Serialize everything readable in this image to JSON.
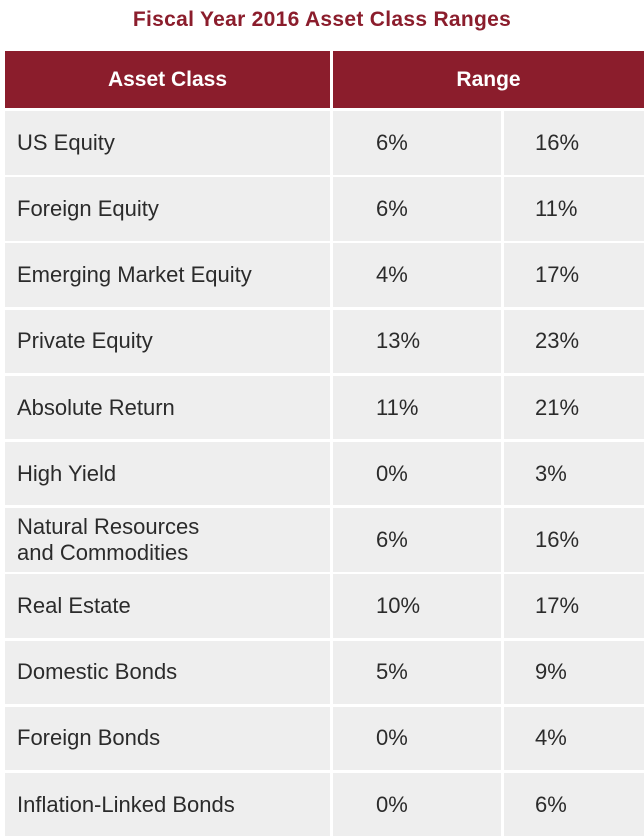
{
  "title": "Fiscal Year 2016 Asset Class Ranges",
  "headers": {
    "asset_class": "Asset Class",
    "range": "Range"
  },
  "rows": [
    {
      "asset": "US Equity",
      "min": "6%",
      "max": "16%"
    },
    {
      "asset": "Foreign Equity",
      "min": "6%",
      "max": "11%"
    },
    {
      "asset": "Emerging Market Equity",
      "min": "4%",
      "max": "17%"
    },
    {
      "asset": "Private Equity",
      "min": "13%",
      "max": "23%"
    },
    {
      "asset": "Absolute Return",
      "min": "11%",
      "max": "21%"
    },
    {
      "asset": "High Yield",
      "min": "0%",
      "max": "3%"
    },
    {
      "asset": "Natural Resources\nand Commodities",
      "min": "6%",
      "max": "16%"
    },
    {
      "asset": "Real Estate",
      "min": "10%",
      "max": "17%"
    },
    {
      "asset": "Domestic Bonds",
      "min": "5%",
      "max": "9%"
    },
    {
      "asset": "Foreign Bonds",
      "min": "0%",
      "max": "4%"
    },
    {
      "asset": "Inflation-Linked Bonds",
      "min": "0%",
      "max": "6%"
    }
  ],
  "colors": {
    "header_bg": "#8b1d2c",
    "title": "#8b1d2c",
    "cell_bg": "#eeeeee",
    "text": "#2b2b2b"
  }
}
